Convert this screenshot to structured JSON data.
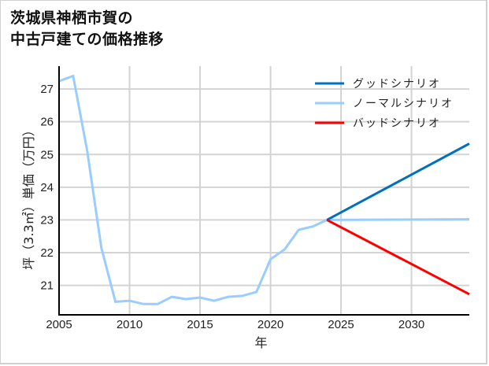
{
  "title": {
    "line1": "茨城県神栖市賀の",
    "line2": "中古戸建ての価格推移"
  },
  "colors": {
    "good": "#0070c0",
    "normal": "#99ccff",
    "bad": "#ff0000",
    "grid": "#d3d3d3",
    "axis": "#000000"
  },
  "chart_data": {
    "type": "line",
    "title": "茨城県神栖市賀の中古戸建ての価格推移",
    "xlabel": "年",
    "ylabel": "坪（3.3㎡）単価（万円）",
    "xlim": [
      2005,
      2034.1
    ],
    "ylim": [
      20.1,
      27.7
    ],
    "x_ticks": [
      2005,
      2010,
      2015,
      2020,
      2025,
      2030
    ],
    "y_ticks": [
      21,
      22,
      23,
      24,
      25,
      26,
      27
    ],
    "grid": true,
    "legend_position": "upper right",
    "legend": [
      "グッドシナリオ",
      "ノーマルシナリオ",
      "バッドシナリオ"
    ],
    "series": [
      {
        "name": "ノーマルシナリオ",
        "color": "#99ccff",
        "x": [
          2005,
          2006,
          2007,
          2008,
          2009,
          2010,
          2011,
          2012,
          2013,
          2014,
          2015,
          2016,
          2017,
          2018,
          2019,
          2020,
          2021,
          2022,
          2023,
          2024,
          2034.1
        ],
        "values": [
          27.24,
          27.4,
          25.1,
          22.15,
          20.5,
          20.53,
          20.43,
          20.43,
          20.65,
          20.58,
          20.63,
          20.53,
          20.65,
          20.68,
          20.8,
          21.8,
          22.1,
          22.7,
          22.8,
          23.0,
          23.02
        ]
      },
      {
        "name": "グッドシナリオ",
        "color": "#0070c0",
        "x": [
          2024,
          2034.1
        ],
        "values": [
          23.0,
          25.33
        ]
      },
      {
        "name": "バッドシナリオ",
        "color": "#ff0000",
        "x": [
          2024,
          2034.1
        ],
        "values": [
          23.0,
          20.73
        ]
      }
    ]
  }
}
